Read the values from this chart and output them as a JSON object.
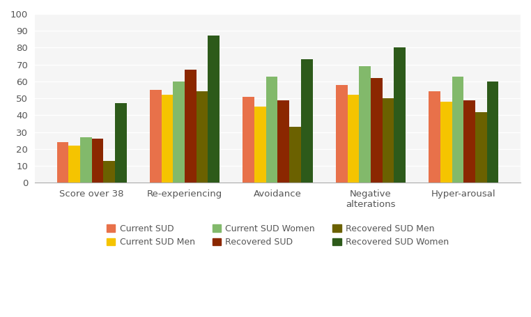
{
  "categories": [
    "Score over 38",
    "Re-experiencing",
    "Avoidance",
    "Negative\nalterations",
    "Hyper-arousal"
  ],
  "series_order": [
    "Current SUD",
    "Current SUD Men",
    "Current SUD Women",
    "Recovered SUD",
    "Recovered SUD Men",
    "Recovered SUD Women"
  ],
  "series": {
    "Current SUD": [
      24,
      55,
      51,
      58,
      54
    ],
    "Current SUD Men": [
      22,
      52,
      45,
      52,
      48
    ],
    "Current SUD Women": [
      27,
      60,
      63,
      69,
      63
    ],
    "Recovered SUD": [
      26,
      67,
      49,
      62,
      49
    ],
    "Recovered SUD Men": [
      13,
      54,
      33,
      50,
      42
    ],
    "Recovered SUD Women": [
      47,
      87,
      73,
      80,
      60
    ]
  },
  "colors": {
    "Current SUD": "#E8714A",
    "Current SUD Men": "#F5C400",
    "Current SUD Women": "#82B96B",
    "Recovered SUD": "#8B2700",
    "Recovered SUD Men": "#6B6100",
    "Recovered SUD Women": "#2D5A1A"
  },
  "legend_order": [
    "Current SUD",
    "Current SUD Men",
    "Current SUD Women",
    "Recovered SUD",
    "Recovered SUD Men",
    "Recovered SUD Women"
  ],
  "ylim": [
    0,
    100
  ],
  "yticks": [
    0,
    10,
    20,
    30,
    40,
    50,
    60,
    70,
    80,
    90,
    100
  ],
  "background_color": "#ffffff",
  "plot_bg_color": "#f5f5f5",
  "grid_color": "#ffffff",
  "bar_width": 0.125,
  "figsize": [
    7.62,
    4.55
  ],
  "dpi": 100
}
